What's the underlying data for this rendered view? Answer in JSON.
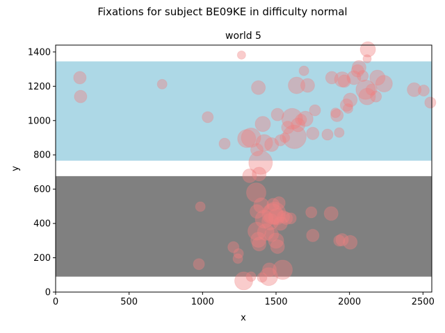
{
  "chart_data": {
    "type": "scatter",
    "suptitle": "Fixations for subject BE09KE in difficulty normal",
    "title": "world 5",
    "xlabel": "x",
    "ylabel": "y",
    "xlim": [
      0,
      2560
    ],
    "ylim": [
      0,
      1440
    ],
    "xticks": [
      0,
      500,
      1000,
      1500,
      2000,
      2500
    ],
    "yticks": [
      0,
      200,
      400,
      600,
      800,
      1000,
      1200,
      1400
    ],
    "grid": false,
    "regions": [
      {
        "y0": 766,
        "y1": 1345,
        "color": "#add8e6"
      },
      {
        "y0": 90,
        "y1": 676,
        "color": "#808080"
      }
    ],
    "point_color": "#f08080",
    "point_alpha": 0.4,
    "points": [
      [
        165,
        1250,
        9
      ],
      [
        170,
        1140,
        9
      ],
      [
        725,
        1212,
        7
      ],
      [
        1035,
        1020,
        8
      ],
      [
        1265,
        1382,
        6
      ],
      [
        1150,
        865,
        8
      ],
      [
        1300,
        895,
        13
      ],
      [
        1330,
        900,
        14
      ],
      [
        1380,
        1192,
        10
      ],
      [
        1370,
        830,
        9
      ],
      [
        1395,
        755,
        17
      ],
      [
        1410,
        980,
        11
      ],
      [
        1420,
        870,
        12
      ],
      [
        1470,
        860,
        10
      ],
      [
        1510,
        1035,
        9
      ],
      [
        1530,
        885,
        8
      ],
      [
        1560,
        900,
        7
      ],
      [
        1580,
        960,
        9
      ],
      [
        1610,
        1010,
        15
      ],
      [
        1625,
        905,
        17
      ],
      [
        1640,
        1205,
        12
      ],
      [
        1650,
        975,
        10
      ],
      [
        1670,
        1005,
        8
      ],
      [
        1690,
        1290,
        7
      ],
      [
        1700,
        1010,
        11
      ],
      [
        1715,
        1205,
        10
      ],
      [
        1750,
        925,
        9
      ],
      [
        1765,
        1060,
        8
      ],
      [
        1850,
        918,
        8
      ],
      [
        1880,
        1250,
        9
      ],
      [
        1905,
        1045,
        7
      ],
      [
        1915,
        1030,
        9
      ],
      [
        1930,
        930,
        7
      ],
      [
        1950,
        1240,
        11
      ],
      [
        1965,
        1230,
        9
      ],
      [
        1980,
        1090,
        9
      ],
      [
        1990,
        1070,
        7
      ],
      [
        2005,
        1120,
        10
      ],
      [
        2030,
        1250,
        10
      ],
      [
        2055,
        1290,
        9
      ],
      [
        2065,
        1310,
        10
      ],
      [
        2090,
        1260,
        8
      ],
      [
        2110,
        1180,
        14
      ],
      [
        2120,
        1140,
        12
      ],
      [
        2120,
        1360,
        6
      ],
      [
        2125,
        1415,
        11
      ],
      [
        2150,
        1180,
        8
      ],
      [
        2180,
        1140,
        8
      ],
      [
        2190,
        1250,
        11
      ],
      [
        2235,
        1215,
        12
      ],
      [
        2440,
        1180,
        10
      ],
      [
        2505,
        1175,
        8
      ],
      [
        2550,
        1105,
        8
      ],
      [
        985,
        498,
        7
      ],
      [
        975,
        163,
        8
      ],
      [
        1210,
        262,
        8
      ],
      [
        1240,
        195,
        7
      ],
      [
        1245,
        225,
        7
      ],
      [
        1280,
        65,
        13
      ],
      [
        1320,
        678,
        10
      ],
      [
        1330,
        90,
        7
      ],
      [
        1365,
        580,
        14
      ],
      [
        1370,
        470,
        10
      ],
      [
        1370,
        355,
        13
      ],
      [
        1380,
        305,
        11
      ],
      [
        1385,
        280,
        10
      ],
      [
        1385,
        688,
        10
      ],
      [
        1400,
        505,
        11
      ],
      [
        1405,
        85,
        7
      ],
      [
        1420,
        425,
        13
      ],
      [
        1430,
        350,
        12
      ],
      [
        1450,
        90,
        13
      ],
      [
        1455,
        130,
        10
      ],
      [
        1460,
        410,
        12
      ],
      [
        1470,
        335,
        10
      ],
      [
        1475,
        455,
        15
      ],
      [
        1480,
        510,
        9
      ],
      [
        1490,
        460,
        16
      ],
      [
        1500,
        300,
        11
      ],
      [
        1505,
        440,
        12
      ],
      [
        1510,
        265,
        10
      ],
      [
        1520,
        520,
        9
      ],
      [
        1530,
        400,
        10
      ],
      [
        1545,
        130,
        14
      ],
      [
        1550,
        438,
        9
      ],
      [
        1570,
        430,
        9
      ],
      [
        1600,
        430,
        8
      ],
      [
        1740,
        465,
        8
      ],
      [
        1750,
        330,
        9
      ],
      [
        1875,
        458,
        10
      ],
      [
        1930,
        300,
        8
      ],
      [
        1950,
        305,
        9
      ],
      [
        2005,
        290,
        10
      ]
    ]
  }
}
